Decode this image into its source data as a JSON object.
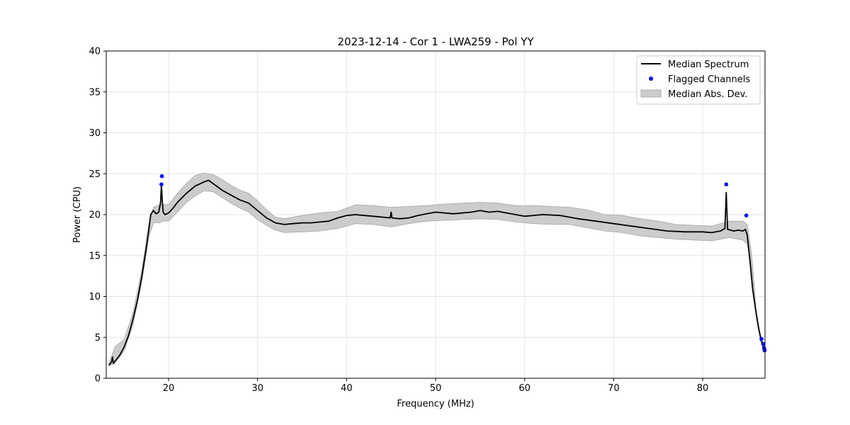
{
  "chart_data": {
    "type": "line",
    "title": "2023-12-14 - Cor 1 - LWA259 - Pol YY",
    "xlabel": "Frequency (MHz)",
    "ylabel": "Power (CPU)",
    "xlim": [
      13,
      87
    ],
    "ylim": [
      0,
      40
    ],
    "x_ticks": [
      20,
      30,
      40,
      50,
      60,
      70,
      80
    ],
    "y_ticks": [
      0,
      5,
      10,
      15,
      20,
      25,
      30,
      35,
      40
    ],
    "grid": true,
    "legend_position": "top-right",
    "legend": [
      "Median Spectrum",
      "Flagged Channels",
      "Median Abs. Dev."
    ],
    "colors": {
      "line": "#000000",
      "flagged": "#0000ff",
      "band": "#cccccc",
      "band_edge": "#a6a6a6",
      "grid": "#e6e6e6"
    },
    "series": [
      {
        "name": "Median Spectrum",
        "x": [
          13.3,
          13.6,
          13.7,
          13.8,
          14.0,
          14.5,
          15.0,
          15.5,
          16.0,
          16.5,
          17.0,
          17.5,
          17.8,
          18.0,
          18.3,
          18.6,
          18.9,
          19.1,
          19.2,
          19.3,
          19.4,
          19.6,
          20.0,
          20.5,
          21.0,
          22.0,
          23.0,
          24.0,
          24.5,
          25.0,
          26.0,
          27.0,
          28.0,
          29.0,
          30.0,
          31.0,
          32.0,
          33.0,
          34.0,
          35.0,
          36.0,
          37.0,
          38.0,
          39.0,
          40.0,
          41.0,
          42.0,
          43.0,
          44.0,
          44.9,
          45.0,
          45.1,
          46.0,
          47.0,
          48.0,
          49.0,
          50.0,
          52.0,
          54.0,
          55.0,
          56.0,
          57.0,
          58.0,
          60.0,
          62.0,
          64.0,
          66.0,
          68.0,
          70.0,
          72.0,
          74.0,
          76.0,
          78.0,
          80.0,
          81.0,
          82.0,
          82.5,
          82.65,
          82.8,
          83.5,
          84.0,
          84.5,
          84.8,
          85.0,
          85.3,
          85.6,
          86.0,
          86.3,
          86.6,
          86.9
        ],
        "y": [
          1.6,
          2.0,
          2.6,
          1.8,
          2.1,
          2.8,
          3.8,
          5.2,
          7.2,
          9.5,
          12.5,
          16.0,
          18.3,
          20.0,
          20.5,
          20.1,
          20.3,
          21.5,
          23.7,
          21.5,
          20.3,
          20.0,
          20.2,
          20.8,
          21.5,
          22.6,
          23.5,
          24.0,
          24.2,
          23.8,
          23.0,
          22.4,
          21.8,
          21.4,
          20.5,
          19.6,
          19.0,
          18.8,
          18.9,
          19.0,
          19.0,
          19.1,
          19.2,
          19.6,
          19.9,
          20.0,
          19.9,
          19.8,
          19.7,
          19.6,
          20.3,
          19.6,
          19.5,
          19.6,
          19.9,
          20.1,
          20.3,
          20.1,
          20.3,
          20.5,
          20.3,
          20.4,
          20.2,
          19.8,
          20.0,
          19.9,
          19.5,
          19.2,
          18.9,
          18.6,
          18.3,
          18.0,
          17.9,
          17.9,
          17.8,
          18.0,
          18.3,
          22.7,
          18.2,
          18.0,
          18.1,
          18.0,
          18.2,
          17.5,
          14.5,
          11.0,
          8.0,
          6.0,
          4.6,
          3.5
        ]
      },
      {
        "name": "Flagged Channels",
        "x": [
          19.2,
          19.25,
          82.65,
          84.9,
          86.6,
          86.8,
          86.9,
          86.95
        ],
        "y": [
          23.7,
          24.7,
          23.7,
          19.9,
          4.8,
          4.2,
          3.7,
          3.4
        ]
      },
      {
        "name": "Median Abs. Dev.",
        "x": [
          13.3,
          14.0,
          15.0,
          16.0,
          17.0,
          17.8,
          18.3,
          19.0,
          19.3,
          20.0,
          21.0,
          22.0,
          23.0,
          24.0,
          25.0,
          26.0,
          27.0,
          28.0,
          29.0,
          30.0,
          31.0,
          32.0,
          33.0,
          35.0,
          37.0,
          39.0,
          41.0,
          43.0,
          45.0,
          47.0,
          49.0,
          51.0,
          53.0,
          55.0,
          57.0,
          59.0,
          61.0,
          63.0,
          65.0,
          67.0,
          69.0,
          71.0,
          73.0,
          75.0,
          77.0,
          79.0,
          81.0,
          83.0,
          84.5,
          85.0,
          85.5,
          86.0,
          86.5,
          86.9
        ],
        "lower": [
          1.5,
          1.9,
          3.3,
          6.5,
          11.8,
          17.3,
          19.0,
          19.0,
          19.2,
          19.2,
          20.3,
          21.5,
          22.3,
          22.9,
          22.8,
          22.1,
          21.4,
          20.8,
          20.3,
          19.4,
          18.7,
          18.1,
          17.8,
          17.9,
          18.0,
          18.3,
          18.9,
          18.8,
          18.5,
          18.9,
          19.2,
          19.3,
          19.4,
          19.5,
          19.4,
          19.1,
          18.9,
          18.8,
          18.8,
          18.4,
          18.0,
          17.8,
          17.4,
          17.2,
          17.0,
          16.9,
          16.8,
          17.2,
          16.9,
          16.4,
          13.7,
          7.6,
          4.5,
          3.3
        ],
        "upper": [
          1.8,
          3.9,
          4.7,
          8.0,
          13.2,
          18.9,
          20.9,
          21.2,
          21.3,
          21.2,
          22.6,
          23.8,
          24.8,
          25.1,
          24.9,
          24.3,
          23.6,
          23.0,
          22.6,
          21.7,
          20.6,
          19.7,
          19.5,
          19.9,
          20.2,
          20.4,
          21.2,
          21.1,
          20.9,
          21.0,
          21.1,
          21.3,
          21.4,
          21.5,
          21.4,
          21.1,
          21.1,
          21.0,
          20.9,
          20.6,
          20.0,
          19.9,
          19.5,
          19.2,
          18.8,
          18.7,
          18.6,
          19.2,
          19.2,
          18.8,
          15.2,
          8.4,
          5.1,
          3.5
        ]
      }
    ]
  }
}
